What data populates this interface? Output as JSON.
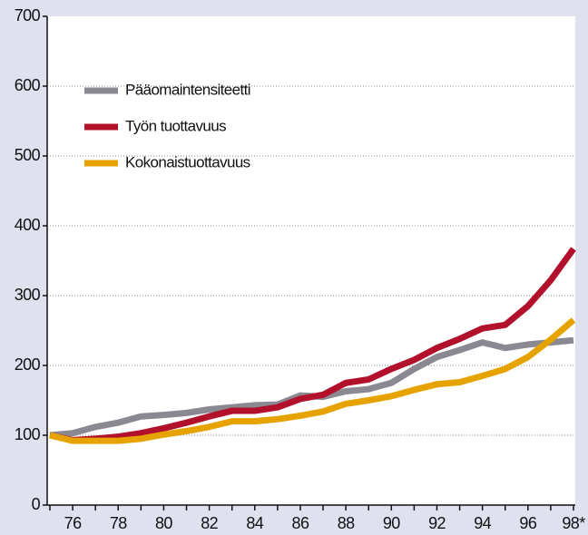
{
  "chart_data": {
    "type": "line",
    "categories": [
      null,
      "76",
      null,
      "78",
      null,
      "80",
      null,
      "82",
      null,
      "84",
      null,
      "86",
      null,
      "88",
      null,
      "90",
      null,
      "92",
      null,
      "94",
      null,
      "96",
      null,
      "98*"
    ],
    "series": [
      {
        "name": "Pääomaintensiteetti",
        "color": "#8a8991",
        "values": [
          100,
          103,
          112,
          118,
          127,
          129,
          132,
          137,
          140,
          143,
          144,
          157,
          155,
          163,
          166,
          175,
          195,
          212,
          222,
          233,
          225,
          230,
          233,
          236
        ]
      },
      {
        "name": "Työn tuottavuus",
        "color": "#b3102c",
        "values": [
          100,
          93,
          95,
          98,
          103,
          110,
          118,
          127,
          135,
          135,
          140,
          152,
          158,
          175,
          180,
          195,
          208,
          225,
          238,
          253,
          258,
          285,
          322,
          367
        ]
      },
      {
        "name": "Kokonaistuottavuus",
        "color": "#e6a300",
        "values": [
          100,
          92,
          92,
          92,
          95,
          101,
          106,
          112,
          120,
          120,
          123,
          128,
          134,
          145,
          150,
          156,
          165,
          173,
          176,
          185,
          195,
          212,
          237,
          265
        ]
      }
    ],
    "ylim": [
      0,
      700
    ],
    "yticks": [
      0,
      100,
      200,
      300,
      400,
      500,
      600,
      700
    ],
    "grid": true,
    "legend": "upper left"
  }
}
